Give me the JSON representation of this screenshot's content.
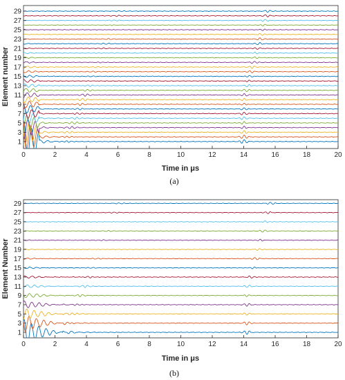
{
  "chart_data": [
    {
      "type": "line",
      "panel_label": "(a)",
      "xlabel": "Time in μs",
      "ylabel": "Element number",
      "xlim": [
        0,
        20
      ],
      "x_ticks": [
        0,
        2,
        4,
        6,
        8,
        10,
        12,
        14,
        16,
        18,
        20
      ],
      "y_ticks": [
        1,
        3,
        5,
        7,
        9,
        11,
        13,
        15,
        17,
        19,
        21,
        23,
        25,
        27,
        29
      ],
      "traces": {
        "elements_from": 1,
        "elements_to": 29,
        "step": 1
      },
      "initial_burst_until": 1.0,
      "echo_time": 14.0,
      "grid": false
    },
    {
      "type": "line",
      "panel_label": "(b)",
      "xlabel": "Time in μs",
      "ylabel": "Element Number",
      "xlim": [
        0,
        20
      ],
      "x_ticks": [
        0,
        2,
        4,
        6,
        8,
        10,
        12,
        14,
        16,
        18,
        20
      ],
      "y_ticks": [
        1,
        3,
        5,
        7,
        9,
        11,
        13,
        15,
        17,
        19,
        21,
        23,
        25,
        27,
        29
      ],
      "traces": {
        "elements_from": 1,
        "elements_to": 29,
        "step": 2
      },
      "initial_burst_until": 2.5,
      "echo_time": 14.2,
      "grid": false
    }
  ],
  "colors": [
    "#0072BD",
    "#D95319",
    "#EDB120",
    "#7E2F8E",
    "#77AC30",
    "#4DBEEE",
    "#A2142F"
  ]
}
